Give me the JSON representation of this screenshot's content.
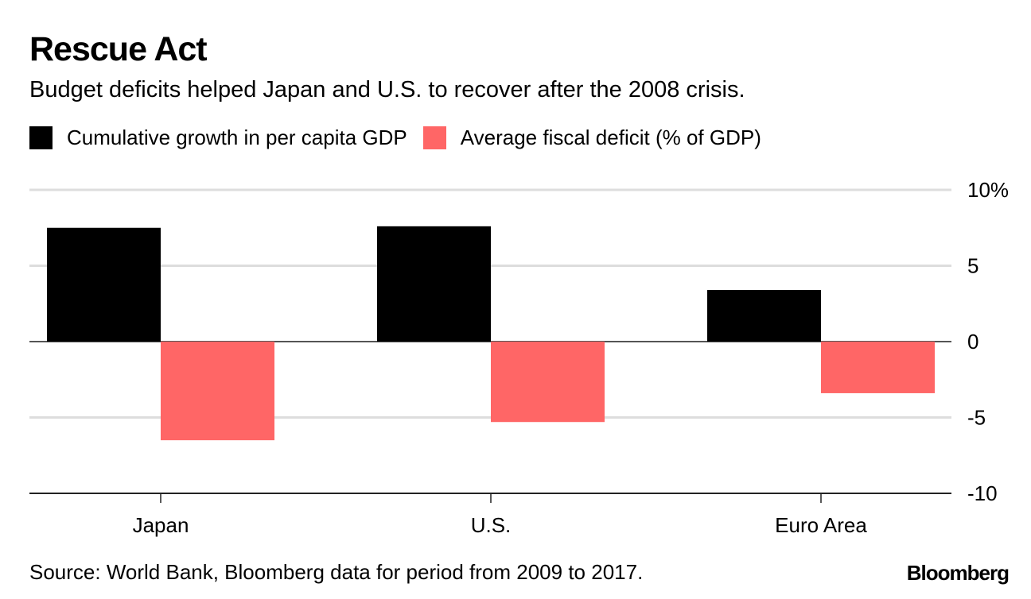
{
  "header": {
    "title": "Rescue Act",
    "subtitle": "Budget deficits helped Japan and U.S. to recover after the 2008 crisis."
  },
  "footer": {
    "source": "Source: World Bank, Bloomberg data for period from 2009 to 2017.",
    "brand": "Bloomberg"
  },
  "colors": {
    "growth": "#000000",
    "deficit": "#ff6666",
    "grid": "#dddddd",
    "axis": "#555555"
  },
  "chart_data": {
    "type": "bar",
    "title": "Rescue Act",
    "subtitle": "Budget deficits helped Japan and U.S. to recover after the 2008 crisis.",
    "categories": [
      "Japan",
      "U.S.",
      "Euro Area"
    ],
    "series": [
      {
        "name": "Cumulative growth in per capita GDP",
        "color": "#000000",
        "values": [
          7.5,
          7.6,
          3.4
        ]
      },
      {
        "name": "Average fiscal deficit (% of GDP)",
        "color": "#ff6666",
        "values": [
          -6.5,
          -5.3,
          -3.4
        ]
      }
    ],
    "xlabel": "",
    "ylabel": "",
    "ylim": [
      -10,
      10
    ],
    "yticks": [
      10,
      5,
      0,
      -5,
      -10
    ],
    "ytick_labels": [
      "10%",
      "5",
      "0",
      "-5",
      "-10"
    ],
    "y_axis_position": "right",
    "grid": true,
    "legend_position": "top-left"
  }
}
